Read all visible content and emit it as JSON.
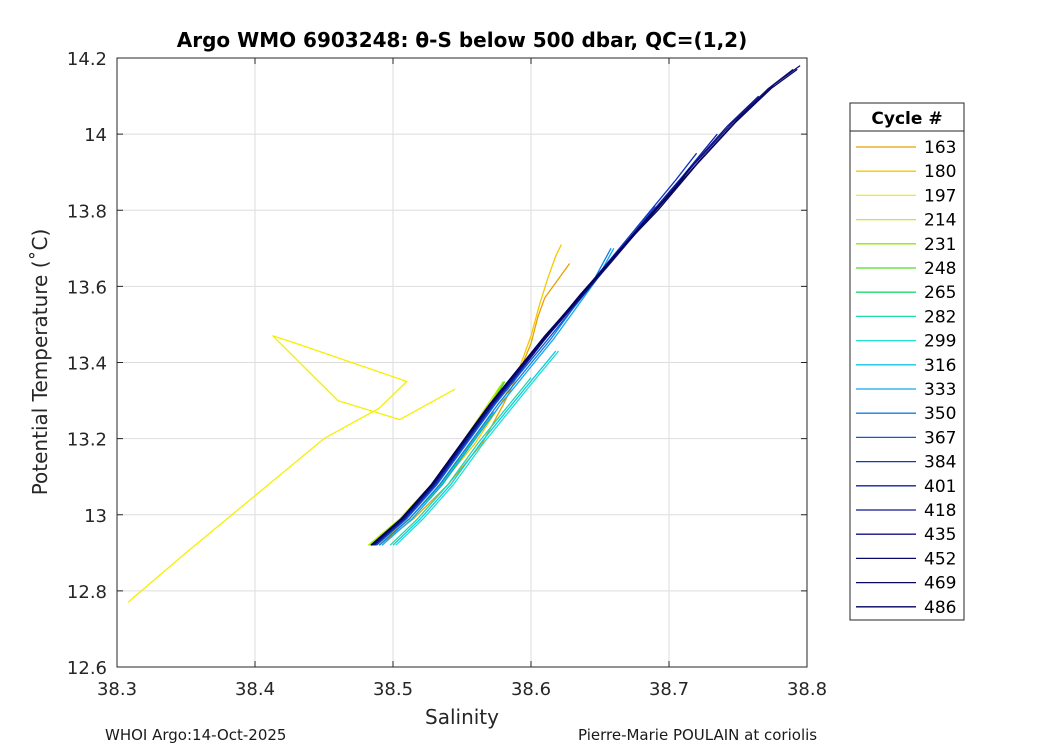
{
  "chart_data": {
    "type": "line",
    "title": "Argo WMO 6903248: θ-S below 500 dbar,  QC=(1,2)",
    "xlabel": "Salinity",
    "ylabel": "Potential Temperature (˚C)",
    "xlim": [
      38.3,
      38.8
    ],
    "ylim": [
      12.6,
      14.2
    ],
    "xticks": [
      "38.3",
      "38.4",
      "38.5",
      "38.6",
      "38.7",
      "38.8"
    ],
    "yticks": [
      "12.6",
      "12.8",
      "13",
      "13.2",
      "13.4",
      "13.6",
      "13.8",
      "14",
      "14.2"
    ],
    "grid": true,
    "legend": {
      "title": "Cycle #",
      "position": "outside-right"
    },
    "series": [
      {
        "name": "163",
        "color": "#e8a000",
        "x": [
          38.49,
          38.515,
          38.54,
          38.565,
          38.58,
          38.592,
          38.6,
          38.605,
          38.61,
          38.62,
          38.628
        ],
        "y": [
          12.92,
          12.99,
          13.08,
          13.19,
          13.29,
          13.38,
          13.45,
          13.52,
          13.57,
          13.62,
          13.66
        ]
      },
      {
        "name": "180",
        "color": "#f5c800",
        "x": [
          38.488,
          38.512,
          38.535,
          38.56,
          38.578,
          38.592,
          38.6,
          38.606,
          38.612,
          38.618,
          38.622
        ],
        "y": [
          12.92,
          12.99,
          13.08,
          13.19,
          13.29,
          13.39,
          13.47,
          13.55,
          13.62,
          13.68,
          13.71
        ]
      },
      {
        "name": "197",
        "color": "#f5f000",
        "x": [
          38.308,
          38.35,
          38.4,
          38.45,
          38.49,
          38.51,
          38.47,
          38.43,
          38.413,
          38.46,
          38.505,
          38.545
        ],
        "y": [
          12.77,
          12.9,
          13.05,
          13.2,
          13.28,
          13.35,
          13.4,
          13.45,
          13.47,
          13.3,
          13.25,
          13.33
        ]
      },
      {
        "name": "214",
        "color": "#c8f000",
        "x": [
          38.482,
          38.505,
          38.528,
          38.55,
          38.565,
          38.578
        ],
        "y": [
          12.92,
          12.99,
          13.08,
          13.19,
          13.27,
          13.34
        ]
      },
      {
        "name": "231",
        "color": "#90e800",
        "x": [
          38.483,
          38.506,
          38.529,
          38.551,
          38.567,
          38.58
        ],
        "y": [
          12.92,
          12.99,
          13.08,
          13.19,
          13.27,
          13.35
        ]
      },
      {
        "name": "248",
        "color": "#50dc20",
        "x": [
          38.484,
          38.507,
          38.53,
          38.552,
          38.568,
          38.581
        ],
        "y": [
          12.92,
          12.99,
          13.08,
          13.19,
          13.27,
          13.35
        ]
      },
      {
        "name": "265",
        "color": "#20d870",
        "x": [
          38.49,
          38.512,
          38.535,
          38.557,
          38.573
        ],
        "y": [
          12.92,
          12.99,
          13.08,
          13.19,
          13.27
        ]
      },
      {
        "name": "282",
        "color": "#20d8a8",
        "x": [
          38.498,
          38.518,
          38.54,
          38.562,
          38.582,
          38.6
        ],
        "y": [
          12.92,
          12.99,
          13.08,
          13.19,
          13.28,
          13.36
        ]
      },
      {
        "name": "299",
        "color": "#20e0d0",
        "x": [
          38.502,
          38.522,
          38.544,
          38.566,
          38.586,
          38.604,
          38.62
        ],
        "y": [
          12.92,
          12.99,
          13.08,
          13.19,
          13.28,
          13.36,
          13.43
        ]
      },
      {
        "name": "316",
        "color": "#10c8e8",
        "x": [
          38.5,
          38.52,
          38.542,
          38.564,
          38.584,
          38.602,
          38.618
        ],
        "y": [
          12.92,
          12.99,
          13.08,
          13.19,
          13.28,
          13.36,
          13.43
        ]
      },
      {
        "name": "333",
        "color": "#10a8f0",
        "x": [
          38.492,
          38.514,
          38.536,
          38.558,
          38.578,
          38.598,
          38.616,
          38.632,
          38.648,
          38.66
        ],
        "y": [
          12.92,
          12.99,
          13.08,
          13.19,
          13.29,
          13.38,
          13.46,
          13.54,
          13.62,
          13.7
        ]
      },
      {
        "name": "350",
        "color": "#1080e8",
        "x": [
          38.49,
          38.512,
          38.534,
          38.556,
          38.576,
          38.596,
          38.614,
          38.63,
          38.646,
          38.658
        ],
        "y": [
          12.92,
          12.99,
          13.08,
          13.19,
          13.29,
          13.38,
          13.46,
          13.54,
          13.62,
          13.7
        ]
      },
      {
        "name": "367",
        "color": "#1058d8",
        "x": [
          38.488,
          38.51,
          38.532,
          38.554,
          38.574,
          38.594,
          38.612,
          38.63,
          38.65,
          38.67,
          38.69
        ],
        "y": [
          12.92,
          12.99,
          13.08,
          13.19,
          13.29,
          13.38,
          13.46,
          13.54,
          13.63,
          13.72,
          13.81
        ]
      },
      {
        "name": "384",
        "color": "#1038c0",
        "x": [
          38.487,
          38.509,
          38.531,
          38.553,
          38.573,
          38.593,
          38.612,
          38.632,
          38.655,
          38.68,
          38.705,
          38.72
        ],
        "y": [
          12.92,
          12.99,
          13.08,
          13.19,
          13.29,
          13.38,
          13.47,
          13.56,
          13.66,
          13.77,
          13.88,
          13.95
        ]
      },
      {
        "name": "401",
        "color": "#1020a8",
        "x": [
          38.486,
          38.508,
          38.53,
          38.552,
          38.572,
          38.592,
          38.612,
          38.634,
          38.658,
          38.684,
          38.71,
          38.735
        ],
        "y": [
          12.92,
          12.99,
          13.08,
          13.19,
          13.29,
          13.38,
          13.47,
          13.57,
          13.67,
          13.78,
          13.89,
          14.0
        ]
      },
      {
        "name": "418",
        "color": "#101890",
        "x": [
          38.486,
          38.508,
          38.53,
          38.552,
          38.572,
          38.592,
          38.612,
          38.635,
          38.66,
          38.688,
          38.715,
          38.742,
          38.765
        ],
        "y": [
          12.92,
          12.99,
          13.08,
          13.19,
          13.29,
          13.38,
          13.47,
          13.57,
          13.68,
          13.79,
          13.91,
          14.02,
          14.1
        ]
      },
      {
        "name": "435",
        "color": "#101080",
        "x": [
          38.485,
          38.507,
          38.529,
          38.551,
          38.571,
          38.591,
          38.612,
          38.636,
          38.662,
          38.69,
          38.718,
          38.746,
          38.772,
          38.79
        ],
        "y": [
          12.92,
          12.99,
          13.08,
          13.19,
          13.29,
          13.38,
          13.47,
          13.57,
          13.68,
          13.8,
          13.92,
          14.03,
          14.12,
          14.17
        ]
      },
      {
        "name": "452",
        "color": "#0a0a6e",
        "x": [
          38.485,
          38.507,
          38.529,
          38.551,
          38.571,
          38.591,
          38.612,
          38.637,
          38.664,
          38.693,
          38.722,
          38.75,
          38.776,
          38.795
        ],
        "y": [
          12.92,
          12.99,
          13.08,
          13.19,
          13.29,
          13.38,
          13.47,
          13.58,
          13.69,
          13.81,
          13.93,
          14.04,
          14.13,
          14.18
        ]
      },
      {
        "name": "469",
        "color": "#08085e",
        "x": [
          38.484,
          38.506,
          38.528,
          38.55,
          38.57,
          38.59,
          38.611,
          38.636,
          38.663,
          38.692,
          38.72,
          38.748,
          38.774,
          38.793
        ],
        "y": [
          12.92,
          12.99,
          13.08,
          13.19,
          13.29,
          13.38,
          13.47,
          13.58,
          13.69,
          13.8,
          13.92,
          14.03,
          14.12,
          14.17
        ]
      },
      {
        "name": "486",
        "color": "#000060",
        "x": [
          38.484,
          38.506,
          38.528,
          38.55,
          38.57,
          38.59,
          38.61,
          38.632,
          38.656,
          38.682,
          38.705,
          38.715
        ],
        "y": [
          12.92,
          12.99,
          13.08,
          13.19,
          13.29,
          13.38,
          13.47,
          13.56,
          13.66,
          13.77,
          13.86,
          13.91
        ]
      }
    ]
  },
  "footer": {
    "left": "WHOI Argo:14-Oct-2025",
    "right": "Pierre-Marie POULAIN at coriolis"
  }
}
